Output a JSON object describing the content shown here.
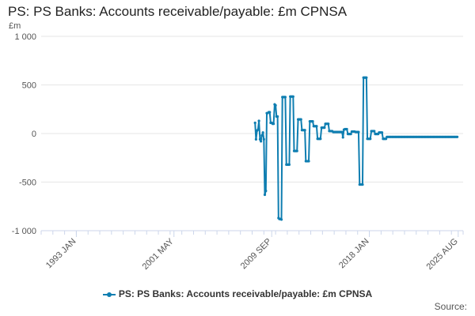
{
  "title": "PS: PS Banks: Accounts receivable/payable: £m CPNSA",
  "unit_label": "£m",
  "credit": "Source:",
  "colors": {
    "series": "#0f7eb1",
    "grid": "#e6e6e6",
    "axis": "#ccd6eb"
  },
  "chart_data": {
    "type": "line",
    "title": "PS: PS Banks: Accounts receivable/payable: £m CPNSA",
    "ylabel": "£m",
    "ylim": [
      -1000,
      1000
    ],
    "yticks": [
      -1000,
      -500,
      0,
      500,
      1000
    ],
    "ytick_labels": [
      "-1 000",
      "-500",
      "0",
      "500",
      "1 000"
    ],
    "xlim": [
      1990.0,
      2026.0
    ],
    "xticks": [
      1993.0,
      2001.33,
      2009.67,
      2018.0,
      2025.58
    ],
    "xtick_labels": [
      "1993 JAN",
      "2001 MAY",
      "2009 SEP",
      "2018 JAN",
      "2025 AUG"
    ],
    "grid": true,
    "legend_position": "bottom",
    "series": [
      {
        "name": "PS: PS Banks: Accounts receivable/payable: £m CPNSA",
        "x": [
          2008.25,
          2008.33,
          2008.42,
          2008.5,
          2008.58,
          2008.67,
          2008.75,
          2008.83,
          2008.92,
          2009.0,
          2009.08,
          2009.17,
          2009.25,
          2009.33,
          2009.42,
          2009.5,
          2009.58,
          2009.67,
          2009.75,
          2009.83,
          2009.92,
          2010.0,
          2010.08,
          2010.17,
          2010.25,
          2010.33,
          2010.42,
          2010.5,
          2010.58,
          2010.67,
          2010.75,
          2010.83,
          2010.92,
          2011.0,
          2011.08,
          2011.17,
          2011.25,
          2011.33,
          2011.42,
          2011.5,
          2011.58,
          2011.67,
          2011.75,
          2011.83,
          2011.92,
          2012.0,
          2012.08,
          2012.17,
          2012.25,
          2012.33,
          2012.42,
          2012.5,
          2012.58,
          2012.67,
          2012.75,
          2012.83,
          2012.92,
          2013.0,
          2013.08,
          2013.17,
          2013.25,
          2013.33,
          2013.42,
          2013.5,
          2013.58,
          2013.67,
          2013.75,
          2013.83,
          2013.92,
          2014.0,
          2014.08,
          2014.17,
          2014.25,
          2014.33,
          2014.42,
          2014.5,
          2014.58,
          2014.67,
          2014.75,
          2014.83,
          2014.92,
          2015.0,
          2015.08,
          2015.17,
          2015.25,
          2015.33,
          2015.42,
          2015.5,
          2015.58,
          2015.67,
          2015.75,
          2015.83,
          2015.92,
          2016.0,
          2016.08,
          2016.17,
          2016.25,
          2016.33,
          2016.42,
          2016.5,
          2016.58,
          2016.67,
          2016.75,
          2016.83,
          2016.92,
          2017.0,
          2017.08,
          2017.17,
          2017.25,
          2017.33,
          2017.42,
          2017.5,
          2017.58,
          2017.67,
          2017.75,
          2017.83,
          2017.92,
          2018.0,
          2018.08,
          2018.17,
          2018.25,
          2018.33,
          2018.42,
          2018.5,
          2018.58,
          2018.67,
          2018.75,
          2018.83,
          2018.92,
          2019.0,
          2019.08,
          2019.17,
          2019.25,
          2019.33,
          2019.42,
          2019.5,
          2019.58,
          2019.67,
          2019.75,
          2019.83,
          2019.92,
          2020.0,
          2020.08,
          2020.17,
          2020.25,
          2020.33,
          2020.42,
          2020.5,
          2020.58,
          2020.67,
          2020.75,
          2020.83,
          2020.92,
          2021.0,
          2021.08,
          2021.17,
          2021.25,
          2021.33,
          2021.42,
          2021.5,
          2021.58,
          2021.67,
          2021.75,
          2021.83,
          2021.92,
          2022.0,
          2022.08,
          2022.17,
          2022.25,
          2022.33,
          2022.42,
          2022.5,
          2022.58,
          2022.67,
          2022.75,
          2022.83,
          2022.92,
          2023.0,
          2023.08,
          2023.17,
          2023.25,
          2023.33,
          2023.42,
          2023.5,
          2023.58,
          2023.67,
          2023.75,
          2023.83,
          2023.92,
          2024.0,
          2024.08,
          2024.17,
          2024.25,
          2024.33,
          2024.42,
          2024.5,
          2024.58,
          2024.67,
          2024.75,
          2024.83,
          2024.92,
          2025.0,
          2025.08,
          2025.17,
          2025.25,
          2025.33,
          2025.42,
          2025.5
        ],
        "values": [
          110,
          -60,
          30,
          40,
          130,
          -60,
          -80,
          -20,
          10,
          -60,
          -630,
          -590,
          210,
          210,
          220,
          220,
          110,
          110,
          100,
          100,
          300,
          290,
          175,
          175,
          -870,
          -880,
          -880,
          -885,
          375,
          375,
          375,
          375,
          -320,
          -320,
          -320,
          -320,
          380,
          380,
          380,
          380,
          -180,
          -180,
          -180,
          -180,
          145,
          145,
          145,
          145,
          35,
          35,
          35,
          35,
          -285,
          -285,
          -285,
          -285,
          125,
          125,
          125,
          125,
          75,
          75,
          75,
          75,
          -55,
          -55,
          -55,
          -55,
          60,
          60,
          60,
          60,
          100,
          100,
          100,
          100,
          25,
          25,
          25,
          25,
          15,
          15,
          15,
          15,
          15,
          15,
          15,
          15,
          15,
          15,
          -40,
          40,
          45,
          45,
          45,
          -5,
          -5,
          -5,
          -5,
          20,
          20,
          20,
          20,
          15,
          15,
          15,
          15,
          -525,
          -525,
          -525,
          -525,
          575,
          575,
          575,
          575,
          -55,
          -55,
          -55,
          -55,
          25,
          25,
          25,
          25,
          -5,
          -5,
          -5,
          -5,
          10,
          10,
          10,
          10,
          -55,
          -55,
          -55,
          -55,
          -35,
          -35,
          -35,
          -35,
          -35,
          -35,
          -35,
          -35,
          -35,
          -35,
          -35,
          -35,
          -35,
          -35,
          -35,
          -35,
          -35,
          -35,
          -35,
          -35,
          -35,
          -35,
          -35,
          -35,
          -35,
          -35,
          -35,
          -35,
          -35,
          -35,
          -35,
          -35,
          -35,
          -35,
          -35,
          -35,
          -35,
          -35,
          -35,
          -35,
          -35,
          -35,
          -35,
          -35,
          -35,
          -35,
          -35,
          -35,
          -35,
          -35,
          -35,
          -35,
          -35,
          -35,
          -35,
          -35,
          -35,
          -35,
          -35,
          -35,
          -35,
          -35,
          -35,
          -35,
          -35,
          -35,
          -35,
          -35,
          -35,
          -35,
          -35,
          -35,
          -35
        ]
      }
    ]
  }
}
